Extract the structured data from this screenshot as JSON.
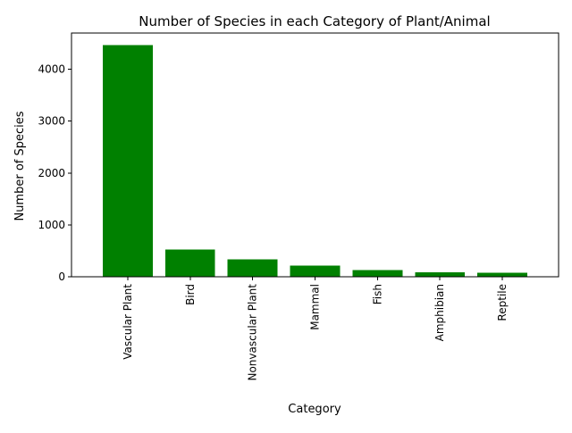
{
  "chart_data": {
    "type": "bar",
    "title": "Number of Species in each Category of Plant/Animal",
    "xlabel": "Category",
    "ylabel": "Number of Species",
    "categories": [
      "Vascular Plant",
      "Bird",
      "Nonvascular Plant",
      "Mammal",
      "Fish",
      "Amphibian",
      "Reptile"
    ],
    "values": [
      4470,
      521,
      333,
      214,
      127,
      88,
      79
    ],
    "ylim": [
      0,
      4700
    ],
    "yticks": [
      0,
      1000,
      2000,
      3000,
      4000
    ],
    "bar_color": "#008000",
    "grid": false,
    "legend": "none",
    "xtick_rotation": "vertical"
  }
}
